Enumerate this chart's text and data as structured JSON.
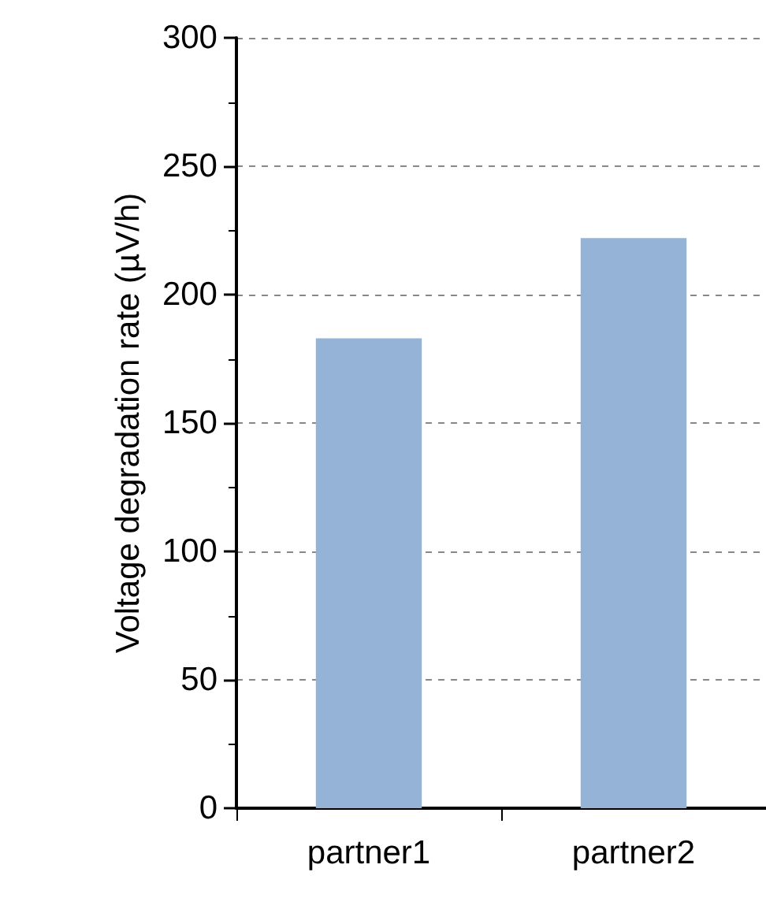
{
  "chart_data": {
    "type": "bar",
    "ylabel": "Voltage degradation rate (µV/h)",
    "categories": [
      "partner1",
      "partner2"
    ],
    "values": [
      183,
      222
    ],
    "color": "#95b3d7",
    "ylim": [
      0,
      300
    ],
    "yticks": [
      0,
      50,
      100,
      150,
      200,
      250,
      300
    ],
    "grid": "y"
  }
}
